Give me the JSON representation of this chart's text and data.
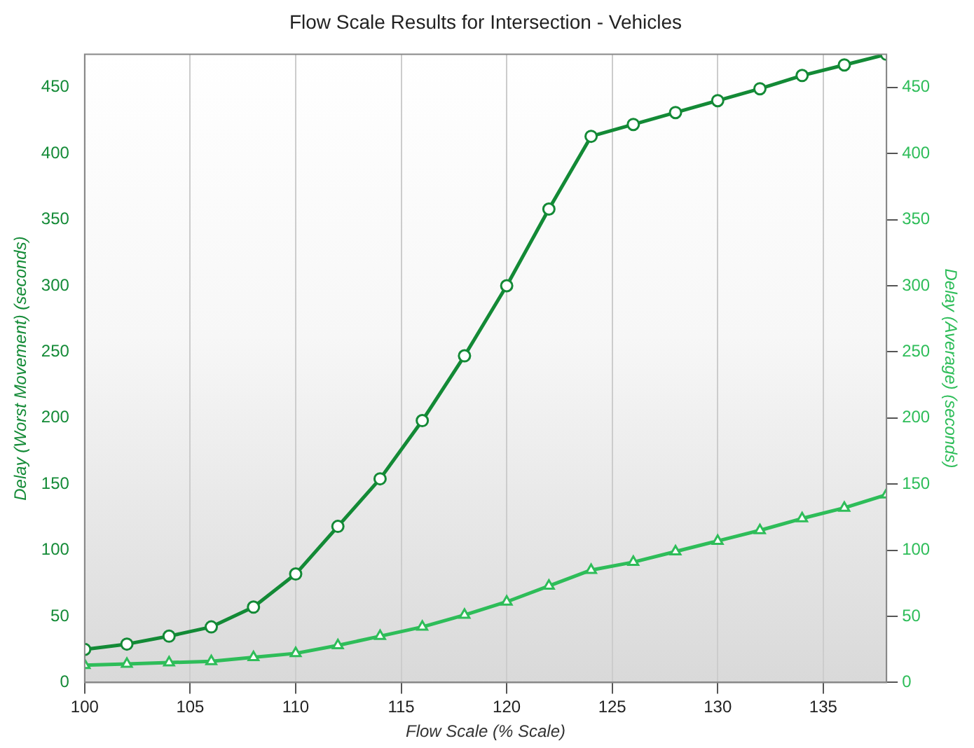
{
  "chart_data": {
    "type": "line",
    "title": "Flow Scale Results for Intersection - Vehicles",
    "xlabel": "Flow Scale (% Scale)",
    "ylabel": "Delay (Worst Movement) (seconds)",
    "y2label": "Delay (Average) (seconds)",
    "x": [
      100,
      102,
      104,
      106,
      108,
      110,
      112,
      114,
      116,
      118,
      120,
      122,
      124,
      126,
      128,
      130,
      132,
      134,
      136,
      138
    ],
    "series": [
      {
        "color": "#138a36",
        "marker": "circle",
        "values": [
          25,
          29,
          35,
          42,
          57,
          82,
          118,
          154,
          198,
          247,
          300,
          358,
          413,
          422,
          431,
          440,
          449,
          459,
          467,
          475
        ]
      },
      {
        "color": "#2ebd59",
        "marker": "triangle",
        "axis": "y2",
        "values": [
          13,
          14,
          15,
          16,
          19,
          22,
          28,
          35,
          42,
          51,
          61,
          73,
          85,
          91,
          99,
          107,
          115,
          124,
          132,
          142
        ]
      }
    ],
    "xlim": [
      100,
      138
    ],
    "xticks": [
      100,
      105,
      110,
      115,
      120,
      125,
      130,
      135
    ],
    "ylim": [
      0,
      475
    ],
    "yticks": [
      0,
      50,
      100,
      150,
      200,
      250,
      300,
      350,
      400,
      450
    ],
    "y2lim": [
      0,
      475
    ],
    "y2ticks": [
      0,
      50,
      100,
      150,
      200,
      250,
      300,
      350,
      400,
      450
    ],
    "grid": "x",
    "legend": false
  }
}
